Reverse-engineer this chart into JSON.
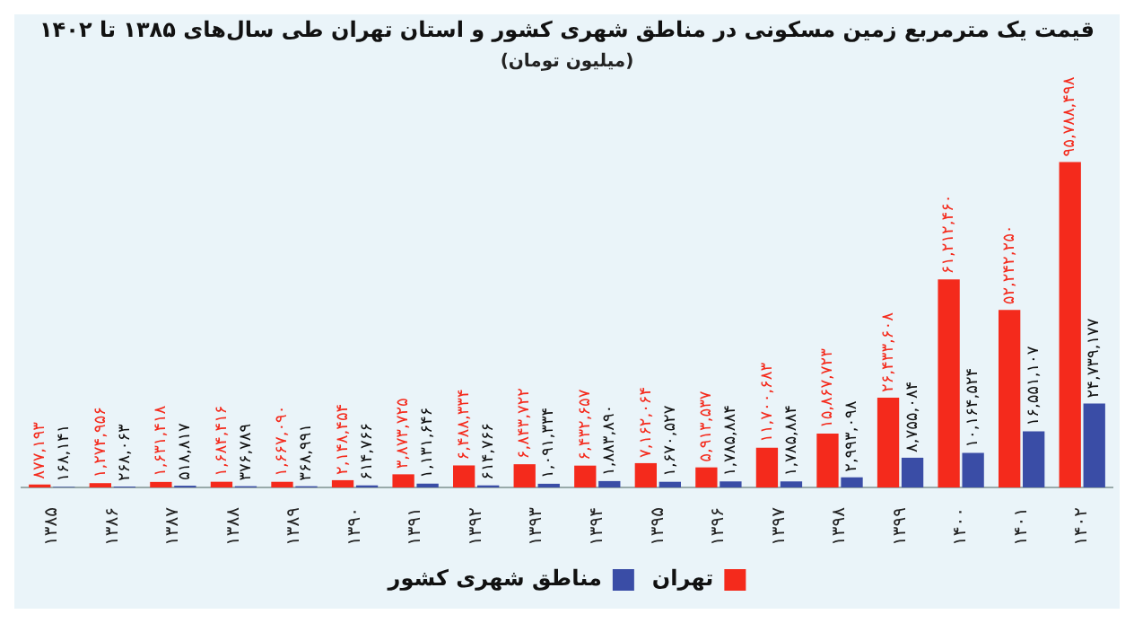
{
  "chart_data": {
    "type": "bar",
    "title": "قیمت یک مترمربع زمین مسکونی در مناطق شهری کشور و استان تهران طی سال‌های ۱۳۸۵ تا ۱۴۰۲",
    "subtitle": "(میلیون تومان)",
    "categories": [
      "۱۳۸۵",
      "۱۳۸۶",
      "۱۳۸۷",
      "۱۳۸۸",
      "۱۳۸۹",
      "۱۳۹۰",
      "۱۳۹۱",
      "۱۳۹۲",
      "۱۳۹۳",
      "۱۳۹۴",
      "۱۳۹۵",
      "۱۳۹۶",
      "۱۳۹۷",
      "۱۳۹۸",
      "۱۳۹۹",
      "۱۴۰۰",
      "۱۴۰۱",
      "۱۴۰۲"
    ],
    "series": [
      {
        "name": "تهران",
        "color": "#f42a1c",
        "values": [
          877193,
          1274956,
          1631418,
          1684416,
          1667090,
          2148454,
          3873725,
          6488334,
          6843722,
          6432657,
          7162064,
          5913537,
          11700683,
          15867723,
          26433608,
          61212460,
          52242250,
          95788498
        ],
        "value_labels": [
          "۸۷۷,۱۹۳",
          "۱,۲۷۴,۹۵۶",
          "۱,۶۳۱,۴۱۸",
          "۱,۶۸۴,۴۱۶",
          "۱,۶۶۷,۰۹۰",
          "۲,۱۴۸,۴۵۴",
          "۳,۸۷۳,۷۲۵",
          "۶,۴۸۸,۳۳۴",
          "۶,۸۴۳,۷۲۲",
          "۶,۴۳۲,۶۵۷",
          "۷,۱۶۲,۰۶۴",
          "۵,۹۱۳,۵۳۷",
          "۱۱,۷۰۰,۶۸۳",
          "۱۵,۸۶۷,۷۲۳",
          "۲۶,۴۳۳,۶۰۸",
          "۶۱,۲۱۲,۴۶۰",
          "۵۲,۲۴۲,۲۵۰",
          "۹۵,۷۸۸,۴۹۸"
        ]
      },
      {
        "name": "مناطق شهری کشور",
        "color": "#3a4da6",
        "values": [
          168141,
          268063,
          518817,
          376789,
          368991,
          614766,
          1131646,
          614766,
          1091334,
          1883890,
          1670527,
          1785884,
          1785884,
          2993098,
          8755084,
          10164524,
          16551107,
          24739177
        ],
        "value_labels": [
          "۱۶۸,۱۴۱",
          "۲۶۸,۰۶۳",
          "۵۱۸,۸۱۷",
          "۳۷۶,۷۸۹",
          "۳۶۸,۹۹۱",
          "۶۱۴,۷۶۶",
          "۱,۱۳۱,۶۴۶",
          "۶۱۴,۷۶۶",
          "۱,۰۹۱,۳۳۴",
          "۱,۸۸۳,۸۹۰",
          "۱,۶۷۰,۵۲۷",
          "۱,۷۸۵,۸۸۴",
          "۱,۷۸۵,۸۸۴",
          "۲,۹۹۳,۰۹۸",
          "۸,۷۵۵,۰۸۴",
          "۱۰,۱۶۴,۵۲۴",
          "۱۶,۵۵۱,۱۰۷",
          "۲۴,۷۳۹,۱۷۷"
        ]
      }
    ],
    "tick_labels": "x",
    "grid": false,
    "legend": "bottom"
  }
}
